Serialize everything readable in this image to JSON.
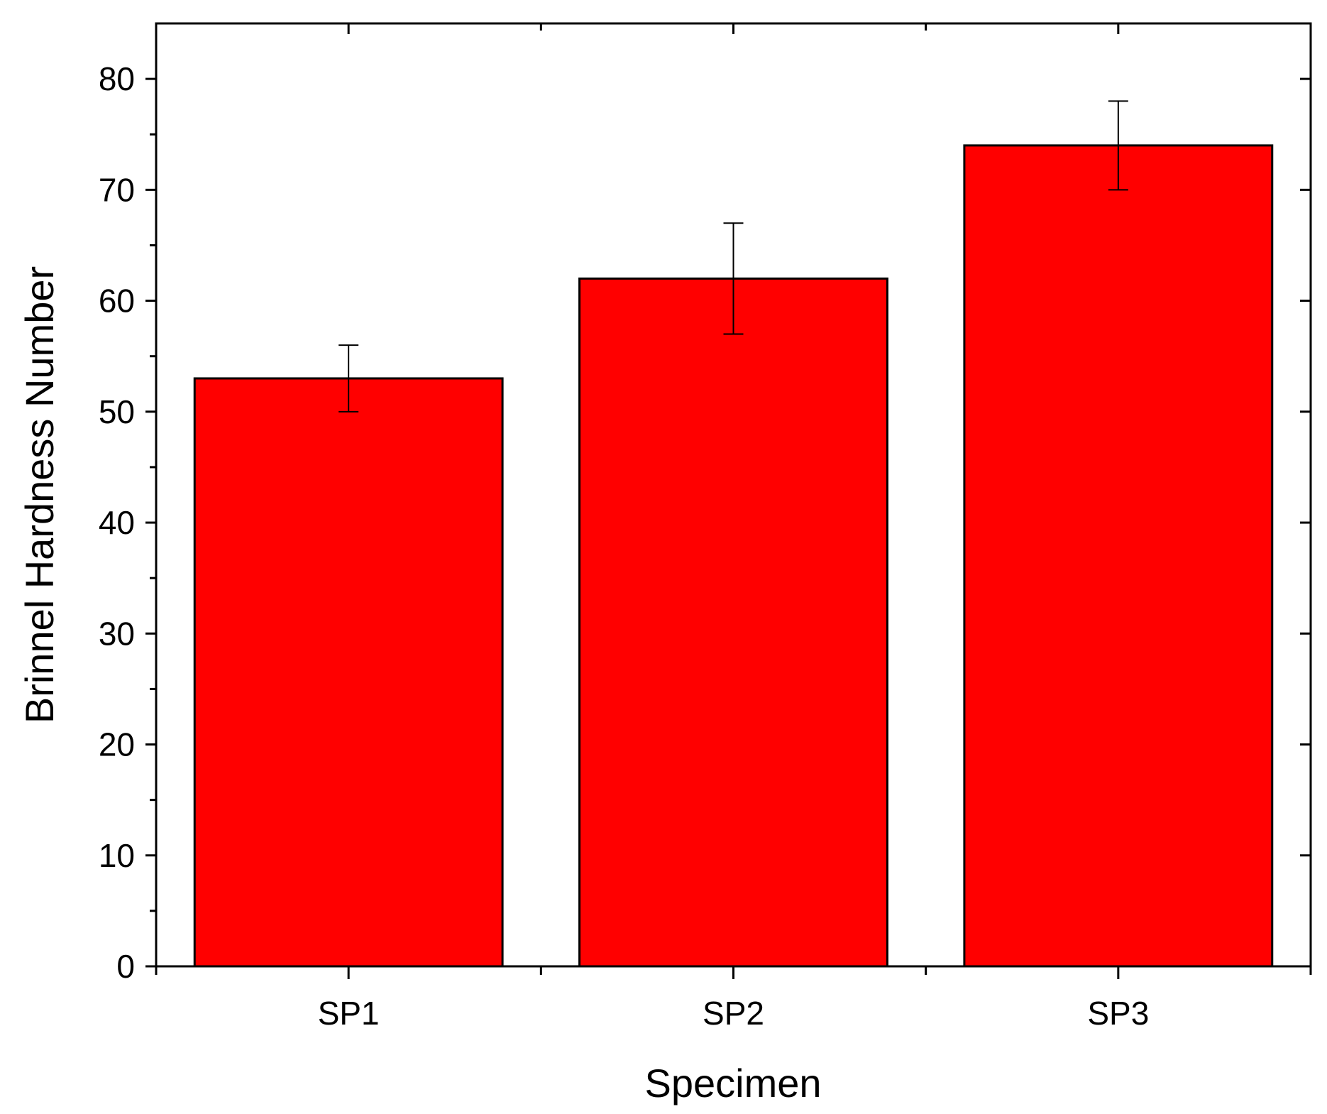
{
  "chart_data": {
    "type": "bar",
    "categories": [
      "SP1",
      "SP2",
      "SP3"
    ],
    "values": [
      53,
      62,
      74
    ],
    "errors": [
      3,
      5,
      4
    ],
    "xlabel": "Specimen",
    "ylabel": "Brinnel Hardness Number",
    "ylim": [
      0,
      85
    ],
    "yticks": [
      "0",
      "10",
      "20",
      "30",
      "40",
      "50",
      "60",
      "70",
      "80"
    ],
    "bar_color": "#ff0000",
    "grid": false
  }
}
